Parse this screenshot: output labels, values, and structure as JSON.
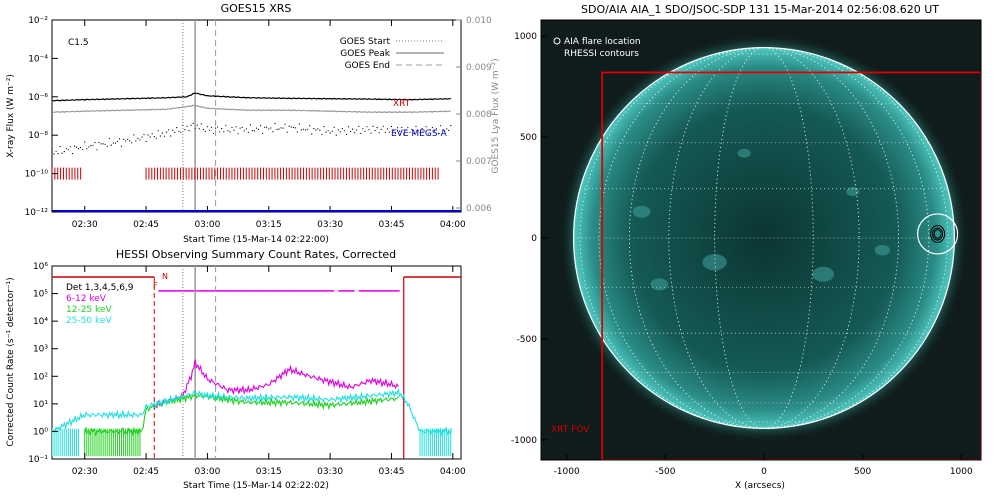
{
  "chart_data": [
    {
      "type": "line",
      "title": "GOES15 XRS",
      "xlabel": "Start Time (15-Mar-14 02:22:00)",
      "ylabel": "X-ray Flux (W m⁻²)",
      "ylabel_right": "GOES15 Lya Flux (W m⁻²)",
      "x_ticks": [
        "02:30",
        "02:45",
        "03:00",
        "03:15",
        "03:30",
        "03:45",
        "04:00"
      ],
      "y_ticks": [
        "10⁻²",
        "10⁻⁴",
        "10⁻⁶",
        "10⁻⁸",
        "10⁻¹⁰",
        "10⁻¹²"
      ],
      "y_right_ticks": [
        "0.010",
        "0.009",
        "0.008",
        "0.007",
        "0.006"
      ],
      "flare_class": "C1.5",
      "legend": [
        "GOES Start",
        "GOES Peak",
        "GOES End"
      ],
      "labels": {
        "xrt": "XRT",
        "eve": "EVE MEGS-A"
      },
      "markers": {
        "goes_start": "02:54",
        "goes_peak": "02:57",
        "goes_end": "03:02"
      },
      "series": [
        {
          "name": "GOES long",
          "color": "#000000",
          "x": [
            "02:22",
            "02:30",
            "02:40",
            "02:50",
            "02:55",
            "02:57",
            "03:00",
            "03:10",
            "03:20",
            "03:30",
            "03:40",
            "03:50",
            "04:00"
          ],
          "y_log": [
            -6.2,
            -6.15,
            -6.1,
            -6.05,
            -6.0,
            -5.8,
            -5.95,
            -6.05,
            -6.08,
            -6.1,
            -6.12,
            -6.15,
            -6.1
          ]
        },
        {
          "name": "GOES short",
          "color": "#9a9a9a",
          "x": [
            "02:22",
            "02:30",
            "02:40",
            "02:50",
            "02:57",
            "03:00",
            "03:10",
            "03:20",
            "03:30",
            "03:40",
            "03:50",
            "04:00"
          ],
          "y_log": [
            -6.8,
            -6.75,
            -6.7,
            -6.65,
            -6.45,
            -6.6,
            -6.7,
            -6.7,
            -6.75,
            -6.8,
            -6.8,
            -6.75
          ]
        },
        {
          "name": "Lya",
          "color": "#000000",
          "x": [
            "02:22",
            "02:30",
            "02:40",
            "02:50",
            "02:57",
            "03:00",
            "03:10",
            "03:20",
            "03:30",
            "03:40",
            "03:50",
            "04:00"
          ],
          "y_log": [
            -8.9,
            -8.6,
            -8.3,
            -7.9,
            -7.5,
            -7.7,
            -7.7,
            -7.6,
            -7.8,
            -7.7,
            -7.75,
            -7.7
          ]
        }
      ],
      "xrt_intervals": [
        [
          "02:22",
          "02:29"
        ],
        [
          "02:45",
          "03:57"
        ]
      ]
    },
    {
      "type": "line",
      "title": "HESSI Observing Summary Count Rates, Corrected",
      "xlabel": "Start Time (15-Mar-14 02:22:02)",
      "ylabel": "Corrected Count Rate (s⁻¹ detector⁻¹)",
      "x_ticks": [
        "02:30",
        "02:45",
        "03:00",
        "03:15",
        "03:30",
        "03:45",
        "04:00"
      ],
      "y_ticks": [
        "10⁶",
        "10⁵",
        "10⁴",
        "10³",
        "10²",
        "10¹",
        "10⁰",
        "10⁻¹"
      ],
      "detectors": "Det 1,3,4,5,6,9",
      "flags": {
        "n": "N",
        "f": "F"
      },
      "series": [
        {
          "name": "6-12 keV",
          "color": "#e000e0",
          "x": [
            "02:47",
            "02:50",
            "02:54",
            "02:56",
            "02:57",
            "03:00",
            "03:05",
            "03:10",
            "03:15",
            "03:20",
            "03:25",
            "03:30",
            "03:35",
            "03:40",
            "03:45",
            "03:47"
          ],
          "y_log": [
            0.9,
            1.1,
            1.3,
            2.0,
            2.5,
            1.9,
            1.5,
            1.5,
            1.7,
            2.25,
            2.0,
            1.8,
            1.6,
            1.85,
            1.7,
            1.6
          ]
        },
        {
          "name": "12-25 keV",
          "color": "#20d020",
          "x": [
            "02:30",
            "02:44",
            "02:45",
            "02:50",
            "02:57",
            "03:00",
            "03:10",
            "03:20",
            "03:30",
            "03:40",
            "03:47"
          ],
          "y_log": [
            0.0,
            0.0,
            0.8,
            1.05,
            1.3,
            1.25,
            1.05,
            1.05,
            0.95,
            1.1,
            1.2
          ]
        },
        {
          "name": "25-50 keV",
          "color": "#20e0e0",
          "x": [
            "02:22",
            "02:30",
            "02:44",
            "02:45",
            "02:50",
            "02:57",
            "03:00",
            "03:10",
            "03:20",
            "03:30",
            "03:40",
            "03:47",
            "03:49",
            "03:52",
            "04:00"
          ],
          "y_log": [
            0.0,
            0.6,
            0.6,
            0.9,
            1.1,
            1.4,
            1.3,
            1.2,
            1.25,
            1.15,
            1.3,
            1.4,
            1.0,
            0.0,
            0.0
          ]
        }
      ],
      "night_intervals": [
        [
          "02:22",
          "02:47"
        ],
        [
          "03:48",
          "04:00"
        ]
      ],
      "flare_flag_interval": [
        "02:48",
        "03:48"
      ]
    },
    {
      "type": "heatmap",
      "title": "SDO/AIA AIA_1 SDO/JSOC-SDP 131 15-Mar-2014 02:56:08.620 UT",
      "xlabel": "X (arcsecs)",
      "x_ticks": [
        -1000,
        -500,
        0,
        500,
        1000
      ],
      "y_ticks": [
        1000,
        500,
        0,
        -500,
        -1000
      ],
      "legend": [
        "AIA flare location",
        "RHESSI contours"
      ],
      "fov_label": "XRT FOV",
      "xlim": [
        -1130,
        1100
      ],
      "ylim": [
        -1100,
        1080
      ],
      "solar_radius": 965,
      "flare_location": [
        880,
        20
      ],
      "xrt_fov": {
        "x": [
          -820,
          1100
        ],
        "y": [
          -1100,
          820
        ]
      }
    }
  ]
}
